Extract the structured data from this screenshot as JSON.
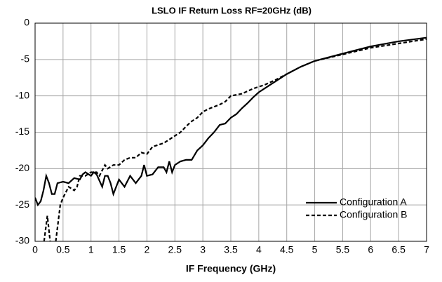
{
  "chart_data": {
    "type": "line",
    "title": "LSLO IF Return Loss RF=20GHz (dB)",
    "xlabel": "IF Frequency  (GHz)",
    "xlim": [
      0,
      7
    ],
    "ylim": [
      -30,
      0
    ],
    "xticks": [
      0,
      0.5,
      1,
      1.5,
      2,
      2.5,
      3,
      3.5,
      4,
      4.5,
      5,
      5.5,
      6,
      6.5,
      7
    ],
    "yticks": [
      0,
      -5,
      -10,
      -15,
      -20,
      -25,
      -30
    ],
    "grid": true,
    "legend": "lower right",
    "series": [
      {
        "name": "Configuration A",
        "color": "#000000",
        "style": "solid",
        "x": [
          0,
          0.05,
          0.1,
          0.15,
          0.2,
          0.25,
          0.3,
          0.35,
          0.4,
          0.5,
          0.6,
          0.7,
          0.8,
          0.85,
          0.9,
          1.0,
          1.05,
          1.1,
          1.2,
          1.25,
          1.3,
          1.35,
          1.4,
          1.5,
          1.6,
          1.7,
          1.8,
          1.9,
          1.95,
          2.0,
          2.1,
          2.2,
          2.3,
          2.35,
          2.4,
          2.45,
          2.5,
          2.6,
          2.7,
          2.8,
          2.9,
          3.0,
          3.1,
          3.2,
          3.3,
          3.4,
          3.5,
          3.6,
          3.7,
          3.8,
          3.9,
          4.0,
          4.1,
          4.2,
          4.3,
          4.4,
          4.5,
          4.75,
          5.0,
          5.5,
          6.0,
          6.5,
          7.0
        ],
        "values": [
          -24,
          -25,
          -24.5,
          -23,
          -21,
          -22,
          -23.5,
          -23.5,
          -22,
          -21.8,
          -22,
          -21.3,
          -21.5,
          -20.8,
          -20.5,
          -21,
          -20.5,
          -20.8,
          -22.5,
          -21,
          -21,
          -22,
          -23.5,
          -21.5,
          -22.5,
          -21,
          -22,
          -21,
          -19.5,
          -21,
          -20.8,
          -19.8,
          -19.8,
          -20.5,
          -19,
          -20.5,
          -19.5,
          -19,
          -18.8,
          -18.8,
          -17.5,
          -16.8,
          -15.8,
          -15,
          -14,
          -13.8,
          -13,
          -12.5,
          -11.7,
          -11,
          -10.2,
          -9.5,
          -9,
          -8.5,
          -8,
          -7.5,
          -7,
          -6,
          -5.2,
          -4.2,
          -3.2,
          -2.5,
          -2
        ]
      },
      {
        "name": "Configuration B",
        "color": "#000000",
        "style": "dashed",
        "x": [
          0.16,
          0.22,
          0.27,
          0.32,
          0.37,
          0.45,
          0.5,
          0.6,
          0.7,
          0.75,
          0.8,
          0.9,
          1.0,
          1.1,
          1.15,
          1.25,
          1.3,
          1.4,
          1.5,
          1.6,
          1.7,
          1.8,
          1.9,
          2.0,
          2.1,
          2.3,
          2.5,
          2.6,
          2.7,
          2.8,
          2.9,
          3.0,
          3.1,
          3.3,
          3.4,
          3.5,
          3.7,
          3.9,
          4.1,
          4.3,
          4.5,
          4.75,
          5.0,
          5.5,
          6.0,
          6.5,
          7.0
        ],
        "values": [
          -30,
          -26.5,
          -30,
          null,
          -30,
          -25,
          -24,
          -22.5,
          -23,
          -22.5,
          -21,
          -21,
          -20.5,
          -20.5,
          -21,
          -19.5,
          -20,
          -19.5,
          -19.5,
          -18.8,
          -18.5,
          -18.5,
          -17.8,
          -18,
          -17,
          -16.5,
          -15.5,
          -15,
          -14.2,
          -13.5,
          -13,
          -12.2,
          -11.8,
          -11.2,
          -10.8,
          -10,
          -9.7,
          -9,
          -8.5,
          -7.8,
          -7,
          -6,
          -5.2,
          -4.3,
          -3.4,
          -2.8,
          -2.2
        ]
      }
    ]
  }
}
